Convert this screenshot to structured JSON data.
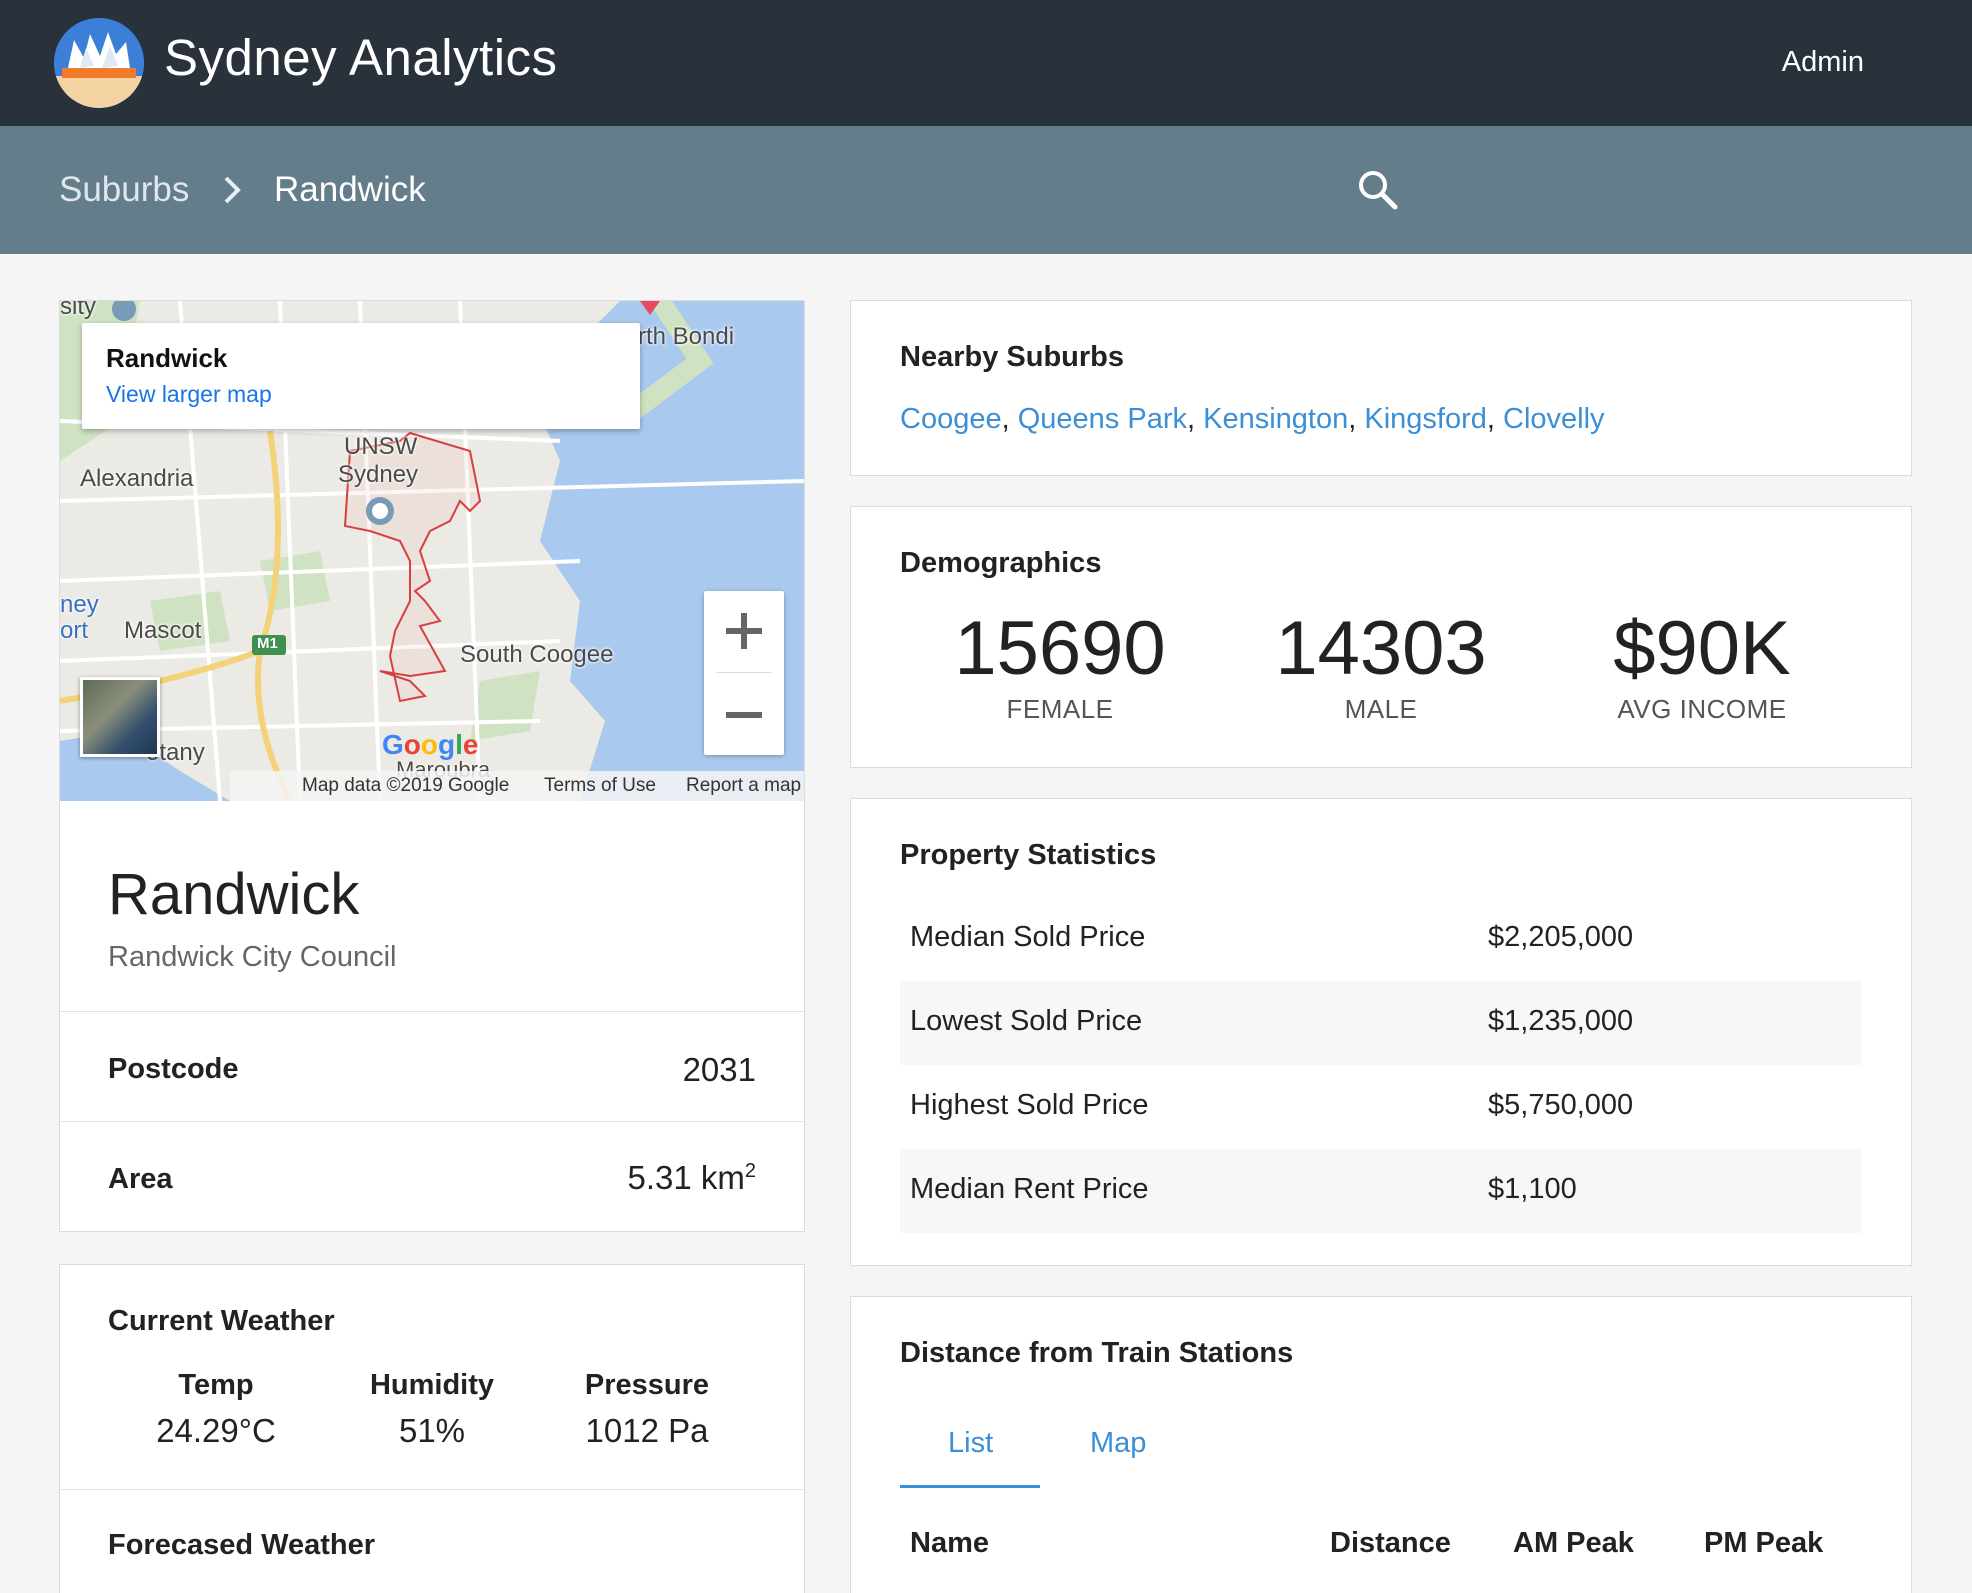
{
  "app": {
    "title": "Sydney Analytics",
    "user": "Admin"
  },
  "breadcrumb": {
    "parent": "Suburbs",
    "current": "Randwick"
  },
  "map": {
    "info_title": "Randwick",
    "info_link": "View larger map",
    "labels": [
      "Alexandria",
      "Mascot",
      "UNSW",
      "Sydney",
      "South Coogee",
      "rth Bondi",
      "otany",
      "Maroubra",
      "M1",
      "ney",
      "ort",
      "sity"
    ],
    "google": "Google",
    "footer": {
      "data": "Map data ©2019 Google",
      "terms": "Terms of Use",
      "report": "Report a map error"
    }
  },
  "suburb": {
    "name": "Randwick",
    "council": "Randwick City Council",
    "postcode_label": "Postcode",
    "postcode": "2031",
    "area_label": "Area",
    "area_value": "5.31 km",
    "area_unit_sup": "2"
  },
  "weather": {
    "current_title": "Current Weather",
    "temp_label": "Temp",
    "temp_value": "24.29°C",
    "humidity_label": "Humidity",
    "humidity_value": "51%",
    "pressure_label": "Pressure",
    "pressure_value": "1012 Pa",
    "forecast_title": "Forecased Weather"
  },
  "nearby": {
    "title": "Nearby Suburbs",
    "suburbs": [
      "Coogee",
      "Queens Park",
      "Kensington",
      "Kingsford",
      "Clovelly"
    ]
  },
  "demographics": {
    "title": "Demographics",
    "female": "15690",
    "female_label": "FEMALE",
    "male": "14303",
    "male_label": "MALE",
    "income": "$90K",
    "income_label": "AVG INCOME"
  },
  "property": {
    "title": "Property Statistics",
    "rows": [
      {
        "label": "Median Sold Price",
        "value": "$2,205,000"
      },
      {
        "label": "Lowest Sold Price",
        "value": "$1,235,000"
      },
      {
        "label": "Highest Sold Price",
        "value": "$5,750,000"
      },
      {
        "label": "Median Rent Price",
        "value": "$1,100"
      }
    ]
  },
  "train": {
    "title": "Distance from Train Stations",
    "tabs": [
      "List",
      "Map"
    ],
    "columns": [
      "Name",
      "Distance",
      "AM Peak",
      "PM Peak"
    ]
  },
  "colors": {
    "appbar": "#29313a",
    "crumbbar": "#647d8a",
    "link": "#3a8fd6",
    "google_blue": "#1a73e8"
  }
}
